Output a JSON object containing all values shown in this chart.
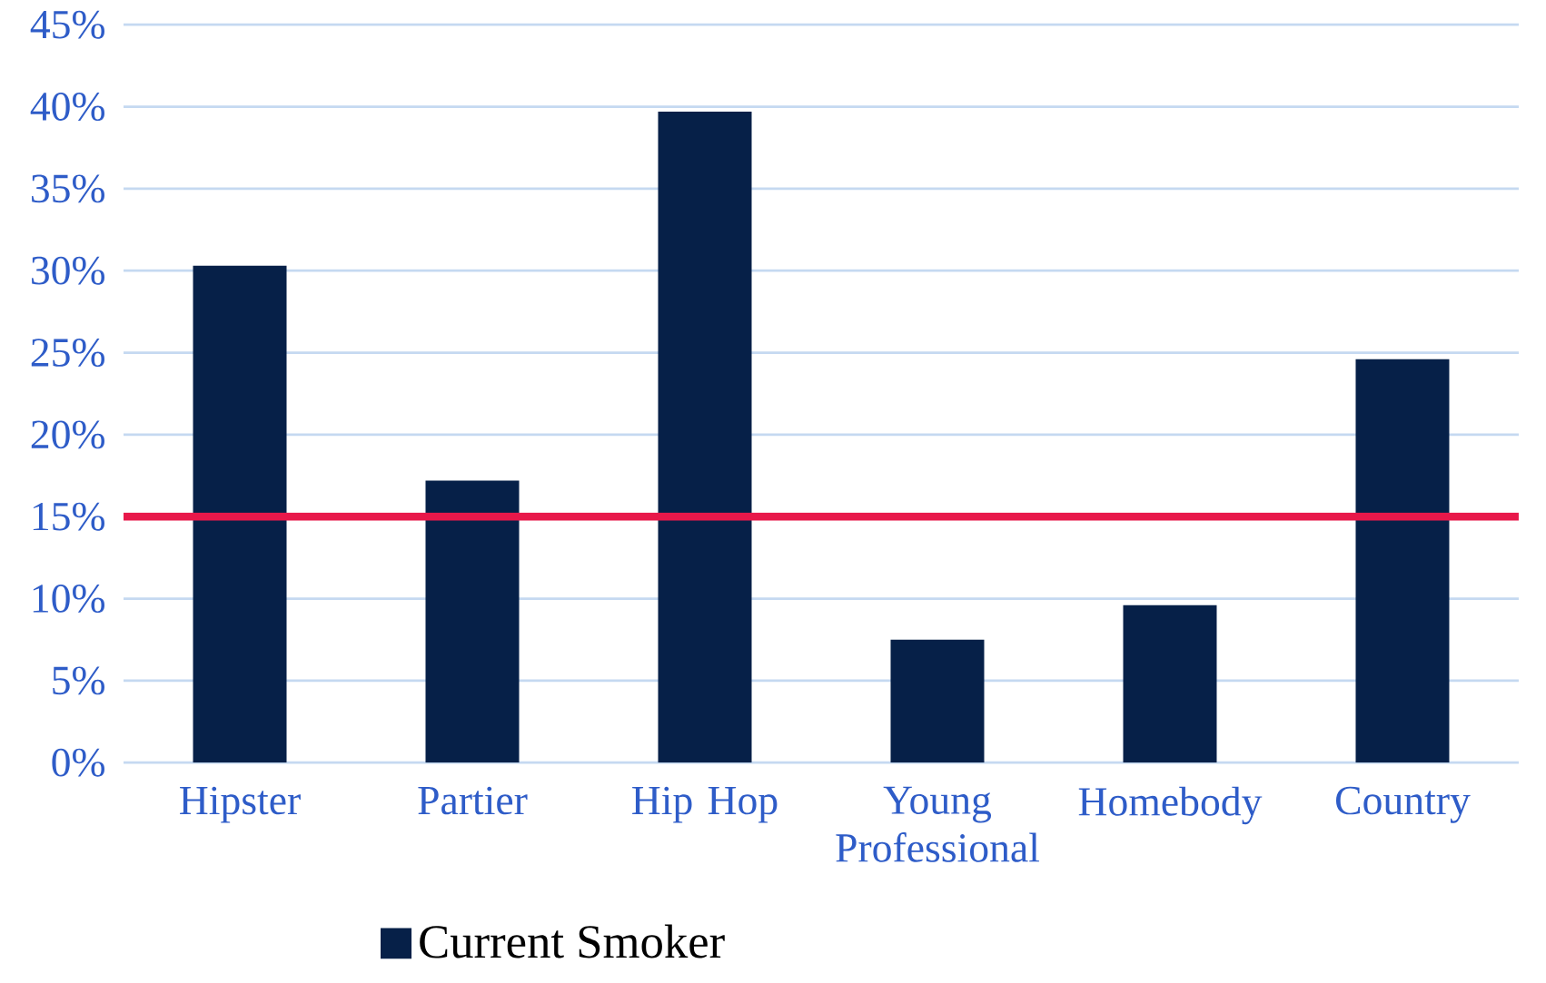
{
  "chart_data": {
    "type": "bar",
    "categories": [
      "Hipster",
      "Partier",
      "Hip Hop",
      "Young Professional",
      "Homebody",
      "Country"
    ],
    "series": [
      {
        "name": "Current Smoker",
        "color": "#062048",
        "values": [
          30.3,
          17.2,
          39.7,
          7.5,
          9.6,
          24.6
        ]
      }
    ],
    "ylim": [
      0,
      45
    ],
    "yticks": [
      {
        "value": 0,
        "label": "0%"
      },
      {
        "value": 5,
        "label": "5%"
      },
      {
        "value": 10,
        "label": "10%"
      },
      {
        "value": 15,
        "label": "15%"
      },
      {
        "value": 20,
        "label": "20%"
      },
      {
        "value": 25,
        "label": "25%"
      },
      {
        "value": 30,
        "label": "30%"
      },
      {
        "value": 35,
        "label": "35%"
      },
      {
        "value": 40,
        "label": "40%"
      },
      {
        "value": 45,
        "label": "45%"
      }
    ],
    "ref_lines": [
      {
        "axis": "y",
        "value": 15,
        "color": "#e8184a"
      }
    ],
    "grid": "y",
    "legend": "bottom"
  }
}
